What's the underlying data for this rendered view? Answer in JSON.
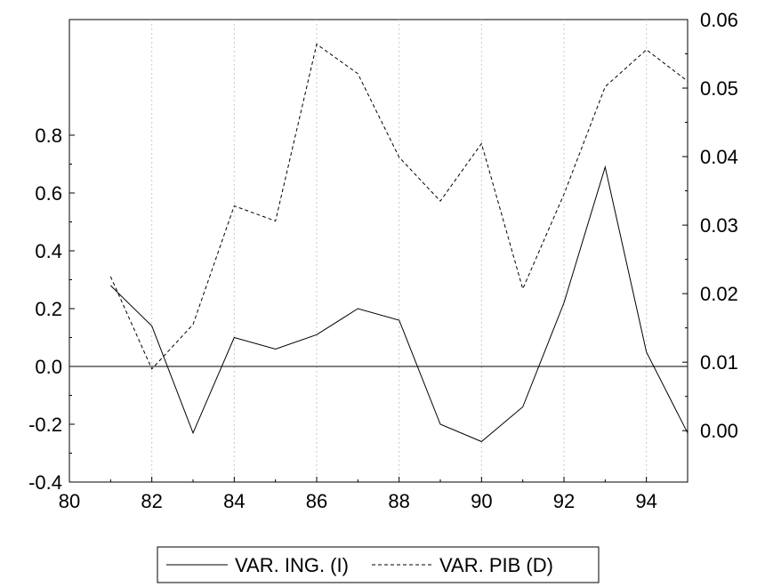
{
  "chart_data": {
    "type": "line",
    "x": [
      81,
      82,
      83,
      84,
      85,
      86,
      87,
      88,
      89,
      90,
      91,
      92,
      93,
      94,
      95
    ],
    "xlim": [
      80,
      95
    ],
    "x_ticks": [
      "80",
      "82",
      "84",
      "86",
      "88",
      "90",
      "92",
      "94"
    ],
    "y_left_ticks": [
      "-0.4",
      "-0.2",
      "0.0",
      "0.2",
      "0.4",
      "0.6",
      "0.8"
    ],
    "y_right_ticks": [
      "0.00",
      "0.01",
      "0.02",
      "0.03",
      "0.04",
      "0.05",
      "0.06"
    ],
    "ylim_left": [
      -0.4,
      1.2
    ],
    "ylim_right": [
      -0.0075,
      0.06
    ],
    "grid": "vertical dotted at x ticks",
    "zero_line_left": 0.0,
    "legend_placement": "bottom-center",
    "series": [
      {
        "name": "VAR. ING. (I)",
        "axis": "left",
        "style": "solid",
        "values": [
          0.28,
          0.14,
          -0.23,
          0.1,
          0.06,
          0.11,
          0.2,
          0.16,
          -0.2,
          -0.26,
          -0.14,
          0.22,
          0.69,
          0.05,
          -0.23
        ]
      },
      {
        "name": "VAR. PIB (D)",
        "axis": "right",
        "style": "dashed",
        "values": [
          0.0225,
          0.009,
          0.0155,
          0.0328,
          0.0306,
          0.0564,
          0.0521,
          0.0399,
          0.0335,
          0.0419,
          0.0207,
          0.0345,
          0.0502,
          0.0556,
          0.051
        ]
      }
    ]
  }
}
